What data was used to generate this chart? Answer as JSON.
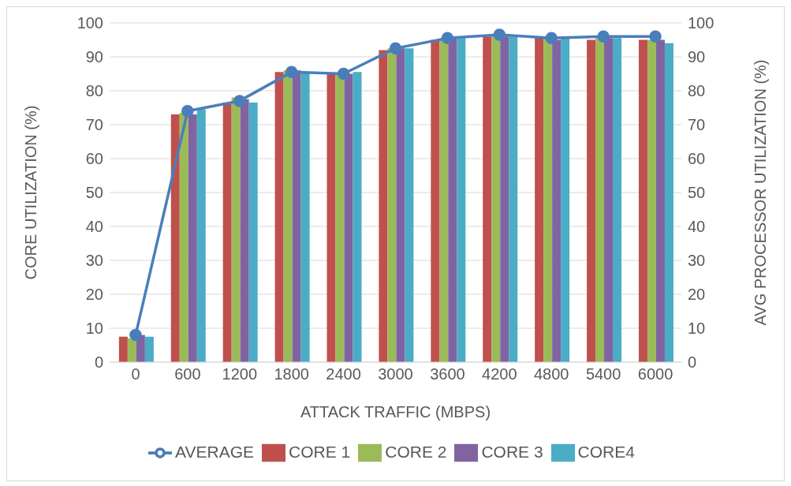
{
  "chart_data": {
    "type": "bar",
    "xlabel": "ATTACK TRAFFIC (MBPS)",
    "ylabel": "CORE UTILIZATION (%)",
    "y2label": "AVG PROCESSOR UTILIZATION (%)",
    "categories": [
      "0",
      "600",
      "1200",
      "1800",
      "2400",
      "3000",
      "3600",
      "4200",
      "4800",
      "5400",
      "6000"
    ],
    "series": [
      {
        "name": "CORE 1",
        "color": "#c0504d",
        "values": [
          7.5,
          73,
          76.5,
          85.5,
          85,
          92,
          95,
          96,
          95.5,
          95,
          95
        ]
      },
      {
        "name": "CORE 2",
        "color": "#9bbb59",
        "values": [
          7,
          73.5,
          78,
          86,
          85,
          92.5,
          95.5,
          96,
          95.5,
          95.5,
          95
        ]
      },
      {
        "name": "CORE 3",
        "color": "#8064a2",
        "values": [
          8,
          73,
          77.5,
          86,
          85,
          92.5,
          95.5,
          96,
          95,
          95.5,
          95
        ]
      },
      {
        "name": "CORE4",
        "color": "#4bacc6",
        "values": [
          7.5,
          74.5,
          76.5,
          85.5,
          85.5,
          92.5,
          95.5,
          96,
          95.5,
          95.5,
          94
        ]
      },
      {
        "name": "AVERAGE",
        "type": "line",
        "axis": "y2",
        "color": "#4a7ebb",
        "marker": "circle",
        "values": [
          8,
          74,
          77,
          85.5,
          85,
          92.5,
          95.5,
          96.5,
          95.5,
          96,
          96
        ]
      }
    ],
    "ylim": [
      0,
      100
    ],
    "yticks": [
      0,
      10,
      20,
      30,
      40,
      50,
      60,
      70,
      80,
      90,
      100
    ],
    "y2lim": [
      0,
      100
    ],
    "y2ticks": [
      0,
      10,
      20,
      30,
      40,
      50,
      60,
      70,
      80,
      90,
      100
    ],
    "grid": "y",
    "legend": "bottom"
  }
}
